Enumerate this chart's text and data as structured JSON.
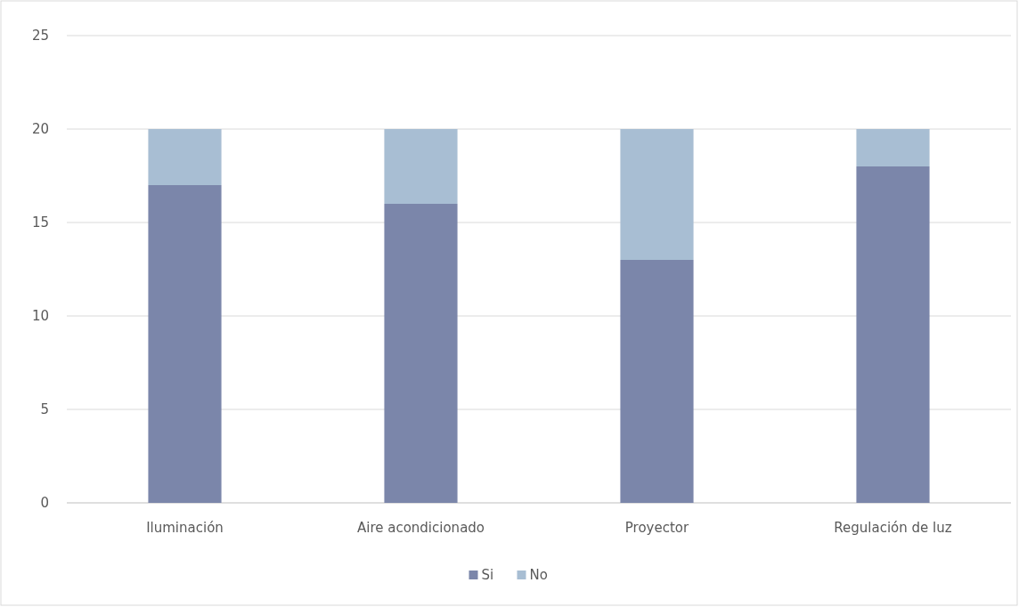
{
  "chart_data": {
    "type": "bar",
    "stacked": true,
    "categories": [
      "Iluminación",
      "Aire acondicionado",
      "Proyector",
      "Regulación de luz"
    ],
    "series": [
      {
        "name": "Si",
        "color": "#7b86aa",
        "values": [
          17,
          16,
          13,
          18
        ]
      },
      {
        "name": "No",
        "color": "#a8bed3",
        "values": [
          3,
          4,
          7,
          2
        ]
      }
    ],
    "ylim": [
      0,
      25
    ],
    "yticks": [
      0,
      5,
      10,
      15,
      20,
      25
    ],
    "grid": "y",
    "legend": "bottom"
  }
}
